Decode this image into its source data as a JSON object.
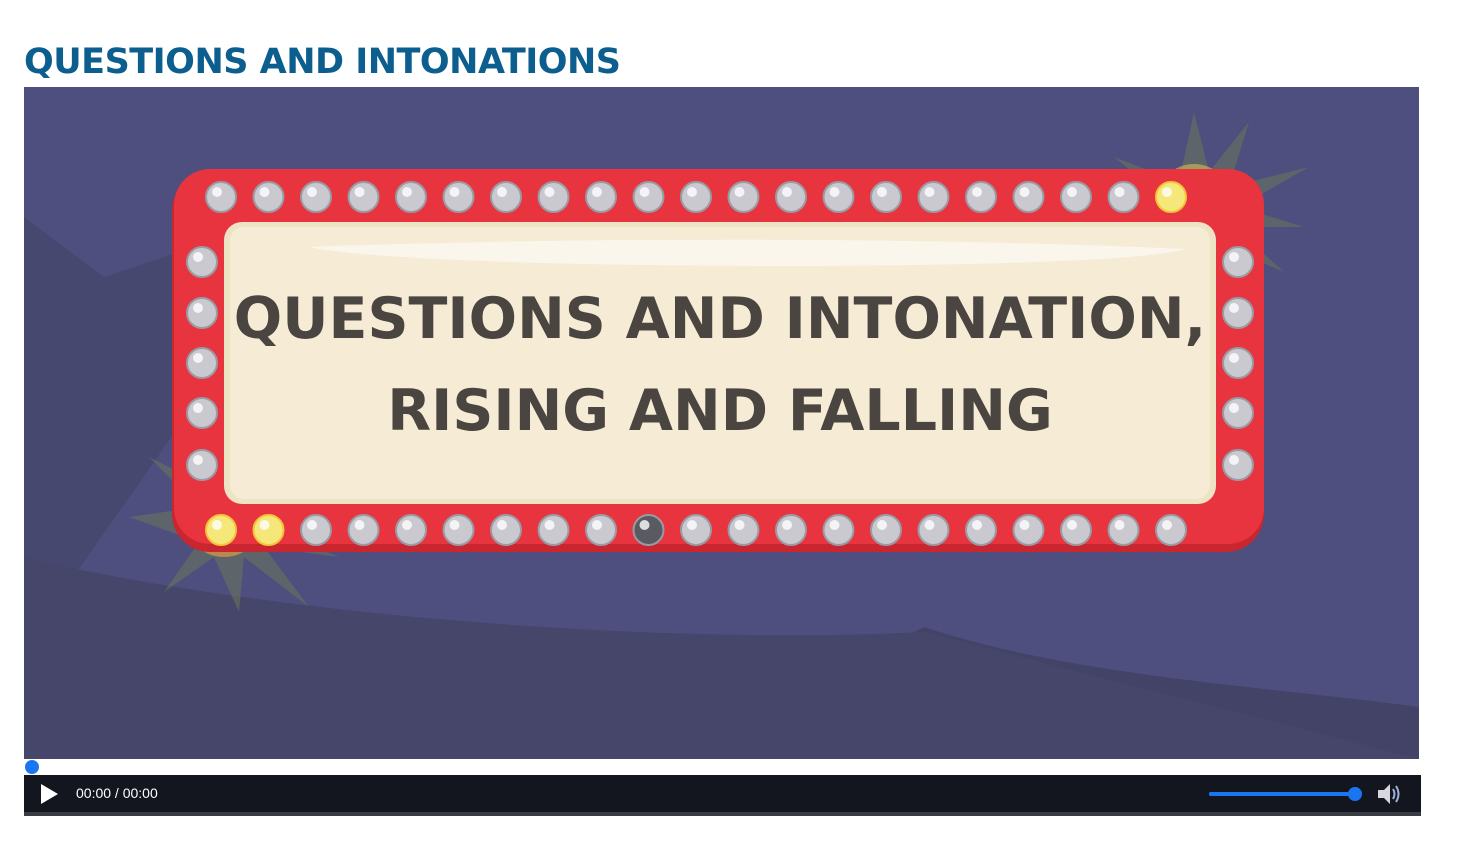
{
  "page": {
    "title": "QUESTIONS AND INTONATIONS"
  },
  "video": {
    "frame_text_line1": "QUESTIONS AND INTONATION,",
    "frame_text_line2": "RISING AND FALLING",
    "colors": {
      "background": "#4e4f7e",
      "marquee_red": "#e8343f",
      "sign_panel": "#f6ecd6",
      "sign_text": "#4a4540",
      "bulb": "#c9c9cf"
    }
  },
  "player": {
    "play_icon": "play-icon",
    "time": "00:00 / 00:00",
    "progress_fraction": 0,
    "volume_fraction": 1.0,
    "volume_icon": "speaker-icon",
    "accent_color": "#1976f0"
  }
}
